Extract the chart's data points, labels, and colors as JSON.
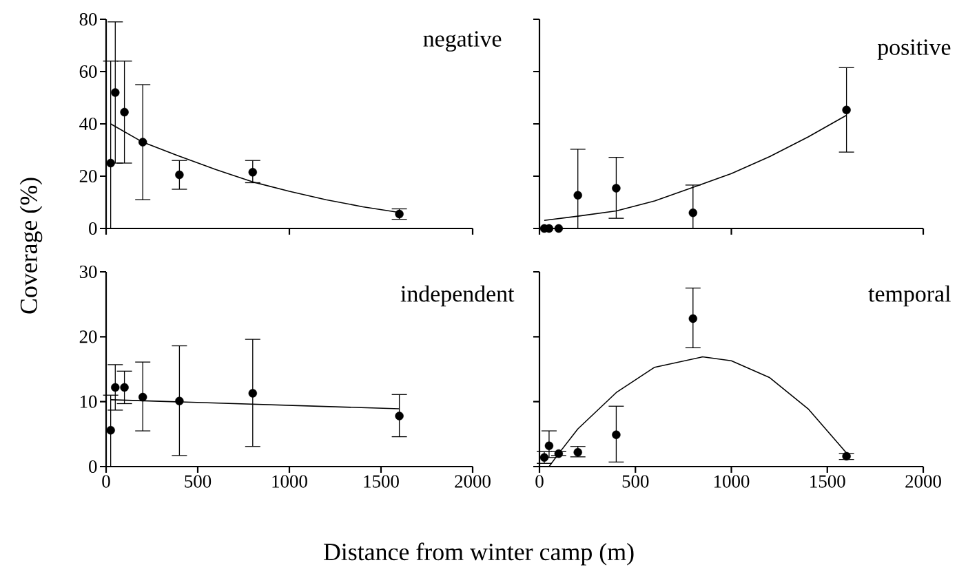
{
  "chart_data": [
    {
      "type": "scatter",
      "title": "negative",
      "ylabel": "Coverage (%)",
      "xlim": [
        0,
        2000
      ],
      "ylim": [
        0,
        80
      ],
      "xticks": [
        0,
        1000,
        2000
      ],
      "yticks": [
        0,
        20,
        40,
        60,
        80
      ],
      "tick_labels": "y",
      "series": [
        {
          "type": "scatter",
          "marker": "circle",
          "color": "#000000",
          "x": [
            25,
            50,
            100,
            200,
            400,
            800,
            1600
          ],
          "values": [
            25,
            52,
            44.5,
            33,
            20.5,
            21.5,
            5.5
          ],
          "errors": [
            [
              0,
              64
            ],
            [
              25,
              79
            ],
            [
              25,
              64
            ],
            [
              11,
              55
            ],
            [
              15,
              26
            ],
            [
              17.5,
              26
            ],
            [
              3.5,
              7.5
            ]
          ]
        },
        {
          "type": "line",
          "marker": "none",
          "color": "#000000",
          "x": [
            25,
            200,
            400,
            600,
            800,
            1000,
            1200,
            1400,
            1600
          ],
          "values": [
            40,
            33,
            27.6,
            22.5,
            17.8,
            14.2,
            11,
            8.3,
            6.1
          ]
        }
      ]
    },
    {
      "type": "scatter",
      "title": "positive",
      "xlim": [
        0,
        2000
      ],
      "ylim": [
        0,
        80
      ],
      "xticks": [
        0,
        1000,
        2000
      ],
      "yticks": [
        0,
        20,
        40,
        60,
        80
      ],
      "tick_labels": false,
      "series": [
        {
          "type": "scatter",
          "marker": "circle",
          "color": "#000000",
          "x": [
            25,
            50,
            100,
            200,
            400,
            800,
            1600
          ],
          "values": [
            0,
            0,
            0,
            12.7,
            15.4,
            6,
            45.3
          ],
          "errors": [
            null,
            null,
            null,
            [
              0,
              30.3
            ],
            [
              3.9,
              27.2
            ],
            [
              0,
              16.6
            ],
            [
              29.2,
              61.5
            ]
          ]
        },
        {
          "type": "line",
          "marker": "none",
          "color": "#000000",
          "x": [
            25,
            200,
            400,
            600,
            800,
            1000,
            1200,
            1400,
            1600
          ],
          "values": [
            3.1,
            4.7,
            6.7,
            10.5,
            15.7,
            21,
            27.5,
            35,
            43.3
          ]
        }
      ]
    },
    {
      "type": "scatter",
      "title": "independent",
      "xlabel": "Distance from winter camp (m)",
      "xlim": [
        0,
        2000
      ],
      "ylim": [
        0,
        30
      ],
      "xticks": [
        0,
        500,
        1000,
        1500,
        2000
      ],
      "yticks": [
        0,
        10,
        20,
        30
      ],
      "series": [
        {
          "type": "scatter",
          "marker": "circle",
          "color": "#000000",
          "x": [
            25,
            50,
            100,
            200,
            400,
            800,
            1600
          ],
          "values": [
            5.6,
            12.2,
            12.2,
            10.7,
            10.1,
            11.3,
            7.8
          ],
          "errors": [
            [
              0,
              11
            ],
            [
              8.7,
              15.7
            ],
            [
              9.7,
              14.7
            ],
            [
              5.5,
              16.1
            ],
            [
              1.7,
              18.6
            ],
            [
              3.1,
              19.6
            ],
            [
              4.6,
              11.1
            ]
          ]
        },
        {
          "type": "line",
          "marker": "none",
          "color": "#000000",
          "x": [
            25,
            1600
          ],
          "values": [
            10.3,
            8.9
          ]
        }
      ]
    },
    {
      "type": "scatter",
      "title": "temporal",
      "xlim": [
        0,
        2000
      ],
      "ylim": [
        0,
        30
      ],
      "xticks": [
        0,
        500,
        1000,
        1500,
        2000
      ],
      "yticks": [
        0,
        10,
        20,
        30
      ],
      "tick_labels": "x",
      "series": [
        {
          "type": "scatter",
          "marker": "circle",
          "color": "#000000",
          "x": [
            25,
            50,
            100,
            200,
            400,
            800,
            1600
          ],
          "values": [
            1.4,
            3.2,
            2,
            2.2,
            4.9,
            22.8,
            1.6
          ],
          "errors": [
            [
              0.5,
              2.3
            ],
            [
              1.4,
              5.5
            ],
            [
              1.7,
              2.3
            ],
            [
              1.5,
              3.1
            ],
            [
              0.7,
              9.3
            ],
            [
              18.3,
              27.5
            ],
            [
              1.1,
              2
            ]
          ]
        },
        {
          "type": "line",
          "marker": "none",
          "color": "#000000",
          "x": [
            50,
            100,
            200,
            400,
            600,
            850,
            1000,
            1200,
            1400,
            1600
          ],
          "values": [
            0,
            2,
            5.8,
            11.4,
            15.3,
            16.9,
            16.3,
            13.7,
            8.9,
            2.1
          ]
        }
      ]
    }
  ]
}
